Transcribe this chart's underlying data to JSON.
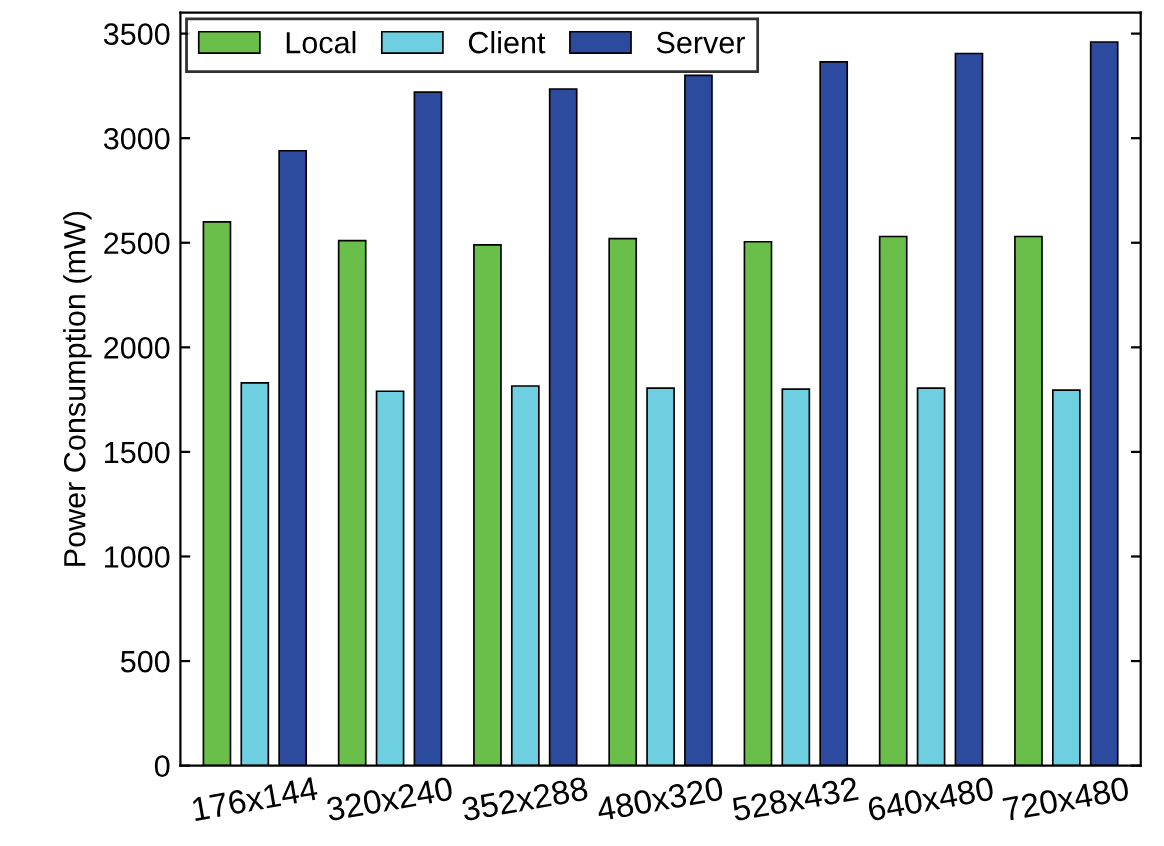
{
  "chart_data": {
    "type": "bar",
    "ylabel": "Power Consumption (mW)",
    "categories": [
      "176x144",
      "320x240",
      "352x288",
      "480x320",
      "528x432",
      "640x480",
      "720x480"
    ],
    "series": [
      {
        "name": "Local",
        "color": "#6abf4b",
        "values": [
          2600,
          2510,
          2490,
          2520,
          2505,
          2530,
          2530
        ]
      },
      {
        "name": "Client",
        "color": "#6dcfdf",
        "values": [
          1830,
          1790,
          1815,
          1805,
          1800,
          1805,
          1795
        ]
      },
      {
        "name": "Server",
        "color": "#2c4a9e",
        "values": [
          2940,
          3220,
          3235,
          3300,
          3365,
          3405,
          3460
        ]
      }
    ],
    "ylim": [
      0,
      3600
    ],
    "yticks": [
      0,
      500,
      1000,
      1500,
      2000,
      2500,
      3000,
      3500
    ],
    "grid": false,
    "legend": "top left"
  }
}
